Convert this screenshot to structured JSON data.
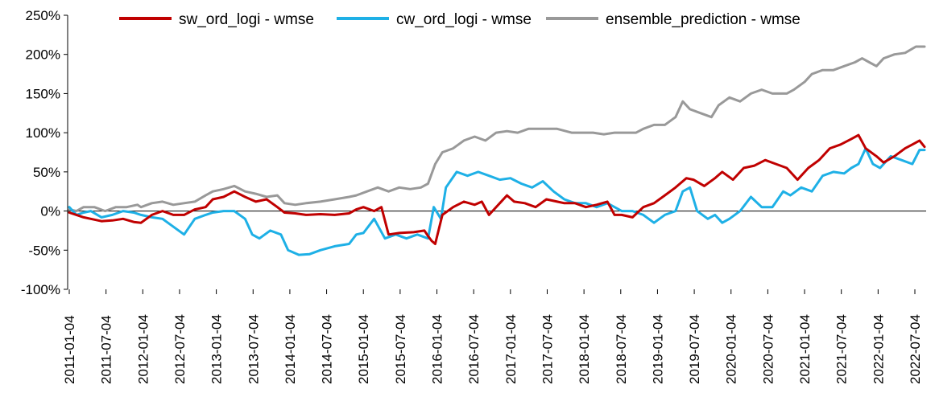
{
  "chart_data": {
    "type": "line",
    "title": "",
    "xlabel": "",
    "ylabel": "",
    "ylim": [
      -1.0,
      2.5
    ],
    "y_ticks": [
      2.5,
      2.0,
      1.5,
      1.0,
      0.5,
      0.0,
      -0.5,
      -1.0
    ],
    "y_tick_labels": [
      "250%",
      "200%",
      "150%",
      "100%",
      "50%",
      "0%",
      "-50%",
      "-100%"
    ],
    "x_tick_labels": [
      "2011-01-04",
      "2011-07-04",
      "2012-01-04",
      "2012-07-04",
      "2013-01-04",
      "2013-07-04",
      "2014-01-04",
      "2014-07-04",
      "2015-01-04",
      "2015-07-04",
      "2016-01-04",
      "2016-07-04",
      "2017-01-04",
      "2017-07-04",
      "2018-01-04",
      "2018-07-04",
      "2019-01-04",
      "2019-07-04",
      "2020-01-04",
      "2020-07-04",
      "2021-01-04",
      "2021-07-04",
      "2022-01-04",
      "2022-07-04"
    ],
    "x_range": [
      2011.0,
      2022.92
    ],
    "legend_position": "top",
    "series": [
      {
        "name": "sw_ord_logi - wmse",
        "color": "#C00000",
        "x": [
          2011.0,
          2011.1,
          2011.2,
          2011.3,
          2011.45,
          2011.6,
          2011.75,
          2011.9,
          2012.0,
          2012.15,
          2012.3,
          2012.45,
          2012.6,
          2012.75,
          2012.9,
          2013.0,
          2013.15,
          2013.3,
          2013.45,
          2013.6,
          2013.75,
          2013.9,
          2014.0,
          2014.15,
          2014.3,
          2014.5,
          2014.7,
          2014.9,
          2015.0,
          2015.1,
          2015.25,
          2015.35,
          2015.45,
          2015.6,
          2015.8,
          2015.95,
          2016.0,
          2016.05,
          2016.1,
          2016.2,
          2016.35,
          2016.5,
          2016.65,
          2016.75,
          2016.85,
          2017.0,
          2017.1,
          2017.2,
          2017.35,
          2017.5,
          2017.65,
          2017.8,
          2017.9,
          2018.05,
          2018.2,
          2018.35,
          2018.5,
          2018.6,
          2018.7,
          2018.85,
          2019.0,
          2019.15,
          2019.3,
          2019.45,
          2019.6,
          2019.7,
          2019.85,
          2020.0,
          2020.1,
          2020.25,
          2020.4,
          2020.55,
          2020.7,
          2020.85,
          2021.0,
          2021.15,
          2021.3,
          2021.45,
          2021.6,
          2021.75,
          2021.9,
          2022.0,
          2022.1,
          2022.25,
          2022.35,
          2022.5,
          2022.65,
          2022.75,
          2022.85,
          2022.92
        ],
        "y": [
          -0.02,
          -0.05,
          -0.08,
          -0.1,
          -0.13,
          -0.12,
          -0.1,
          -0.14,
          -0.15,
          -0.05,
          0.0,
          -0.05,
          -0.05,
          0.02,
          0.05,
          0.15,
          0.18,
          0.25,
          0.18,
          0.12,
          0.15,
          0.05,
          -0.02,
          -0.03,
          -0.05,
          -0.04,
          -0.05,
          -0.03,
          0.02,
          0.05,
          0.0,
          0.05,
          -0.3,
          -0.28,
          -0.27,
          -0.25,
          -0.32,
          -0.38,
          -0.42,
          -0.05,
          0.05,
          0.12,
          0.08,
          0.12,
          -0.05,
          0.1,
          0.2,
          0.12,
          0.1,
          0.05,
          0.15,
          0.12,
          0.1,
          0.1,
          0.05,
          0.08,
          0.12,
          -0.05,
          -0.05,
          -0.08,
          0.05,
          0.1,
          0.2,
          0.3,
          0.42,
          0.4,
          0.32,
          0.42,
          0.5,
          0.4,
          0.55,
          0.58,
          0.65,
          0.6,
          0.55,
          0.4,
          0.55,
          0.65,
          0.8,
          0.85,
          0.92,
          0.97,
          0.8,
          0.7,
          0.62,
          0.7,
          0.8,
          0.85,
          0.9,
          0.82
        ]
      },
      {
        "name": "cw_ord_logi - wmse",
        "color": "#1EB0E6",
        "x": [
          2011.0,
          2011.1,
          2011.2,
          2011.3,
          2011.45,
          2011.6,
          2011.75,
          2011.9,
          2012.0,
          2012.15,
          2012.3,
          2012.45,
          2012.6,
          2012.75,
          2012.9,
          2013.0,
          2013.15,
          2013.3,
          2013.45,
          2013.55,
          2013.65,
          2013.8,
          2013.95,
          2014.05,
          2014.2,
          2014.35,
          2014.5,
          2014.7,
          2014.9,
          2015.0,
          2015.1,
          2015.25,
          2015.4,
          2015.55,
          2015.7,
          2015.85,
          2016.0,
          2016.08,
          2016.18,
          2016.25,
          2016.4,
          2016.55,
          2016.7,
          2016.85,
          2017.0,
          2017.15,
          2017.3,
          2017.45,
          2017.6,
          2017.75,
          2017.9,
          2018.05,
          2018.2,
          2018.35,
          2018.5,
          2018.7,
          2018.85,
          2019.0,
          2019.15,
          2019.3,
          2019.45,
          2019.55,
          2019.65,
          2019.75,
          2019.9,
          2020.0,
          2020.1,
          2020.2,
          2020.35,
          2020.5,
          2020.65,
          2020.8,
          2020.95,
          2021.05,
          2021.2,
          2021.35,
          2021.5,
          2021.65,
          2021.8,
          2021.9,
          2022.0,
          2022.1,
          2022.2,
          2022.3,
          2022.45,
          2022.6,
          2022.75,
          2022.85,
          2022.92
        ],
        "y": [
          0.05,
          -0.05,
          -0.02,
          0.0,
          -0.08,
          -0.05,
          0.0,
          -0.02,
          -0.05,
          -0.08,
          -0.1,
          -0.2,
          -0.3,
          -0.1,
          -0.05,
          -0.02,
          0.0,
          0.0,
          -0.1,
          -0.3,
          -0.35,
          -0.25,
          -0.3,
          -0.5,
          -0.56,
          -0.55,
          -0.5,
          -0.45,
          -0.42,
          -0.3,
          -0.28,
          -0.1,
          -0.35,
          -0.3,
          -0.35,
          -0.3,
          -0.35,
          0.05,
          -0.1,
          0.3,
          0.5,
          0.45,
          0.5,
          0.45,
          0.4,
          0.42,
          0.35,
          0.3,
          0.38,
          0.25,
          0.15,
          0.1,
          0.1,
          0.05,
          0.1,
          0.0,
          0.0,
          -0.05,
          -0.15,
          -0.05,
          0.0,
          0.25,
          0.3,
          0.0,
          -0.1,
          -0.05,
          -0.15,
          -0.1,
          0.0,
          0.18,
          0.05,
          0.05,
          0.25,
          0.2,
          0.3,
          0.25,
          0.45,
          0.5,
          0.48,
          0.55,
          0.6,
          0.8,
          0.6,
          0.55,
          0.7,
          0.65,
          0.6,
          0.78,
          0.78
        ]
      },
      {
        "name": "ensemble_prediction - wmse",
        "color": "#999999",
        "x": [
          2011.0,
          2011.1,
          2011.2,
          2011.35,
          2011.5,
          2011.65,
          2011.8,
          2011.95,
          2012.0,
          2012.15,
          2012.3,
          2012.45,
          2012.6,
          2012.75,
          2012.9,
          2013.0,
          2013.15,
          2013.3,
          2013.45,
          2013.6,
          2013.75,
          2013.9,
          2014.0,
          2014.15,
          2014.3,
          2014.5,
          2014.7,
          2014.9,
          2015.0,
          2015.15,
          2015.3,
          2015.45,
          2015.6,
          2015.75,
          2015.9,
          2016.0,
          2016.1,
          2016.2,
          2016.35,
          2016.5,
          2016.65,
          2016.8,
          2016.95,
          2017.1,
          2017.25,
          2017.4,
          2017.6,
          2017.8,
          2018.0,
          2018.15,
          2018.3,
          2018.45,
          2018.6,
          2018.75,
          2018.9,
          2019.0,
          2019.15,
          2019.3,
          2019.45,
          2019.55,
          2019.65,
          2019.8,
          2019.95,
          2020.05,
          2020.2,
          2020.35,
          2020.5,
          2020.65,
          2020.8,
          2021.0,
          2021.1,
          2021.25,
          2021.35,
          2021.5,
          2021.65,
          2021.8,
          2021.95,
          2022.05,
          2022.15,
          2022.25,
          2022.35,
          2022.5,
          2022.65,
          2022.8,
          2022.92
        ],
        "y": [
          0.02,
          0.0,
          0.05,
          0.05,
          0.0,
          0.05,
          0.05,
          0.08,
          0.05,
          0.1,
          0.12,
          0.08,
          0.1,
          0.12,
          0.2,
          0.25,
          0.28,
          0.32,
          0.25,
          0.22,
          0.18,
          0.2,
          0.1,
          0.08,
          0.1,
          0.12,
          0.15,
          0.18,
          0.2,
          0.25,
          0.3,
          0.25,
          0.3,
          0.28,
          0.3,
          0.35,
          0.6,
          0.75,
          0.8,
          0.9,
          0.95,
          0.9,
          1.0,
          1.02,
          1.0,
          1.05,
          1.05,
          1.05,
          1.0,
          1.0,
          1.0,
          0.98,
          1.0,
          1.0,
          1.0,
          1.05,
          1.1,
          1.1,
          1.2,
          1.4,
          1.3,
          1.25,
          1.2,
          1.35,
          1.45,
          1.4,
          1.5,
          1.55,
          1.5,
          1.5,
          1.55,
          1.65,
          1.75,
          1.8,
          1.8,
          1.85,
          1.9,
          1.95,
          1.9,
          1.85,
          1.95,
          2.0,
          2.02,
          2.1,
          2.1
        ]
      }
    ]
  }
}
